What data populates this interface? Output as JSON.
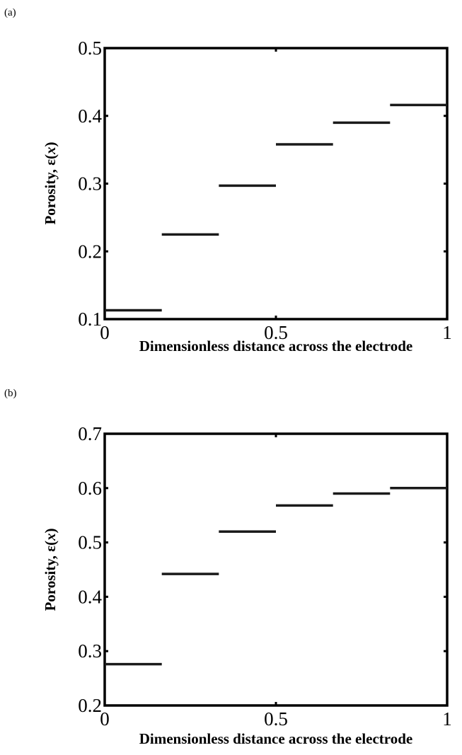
{
  "chart_data": [
    {
      "panel_label": "(a)",
      "type": "line",
      "style": "piecewise-constant steps",
      "xlabel": "Dimensionless distance across the electrode",
      "ylabel_text": "Porosity, ",
      "ylabel_symbol": "ε(",
      "ylabel_var": "x",
      "ylabel_close": ")",
      "xlim": [
        0,
        1
      ],
      "ylim": [
        0.1,
        0.5
      ],
      "xticks": [
        "0",
        "0.5",
        "1"
      ],
      "yticks": [
        "0.1",
        "0.2",
        "0.3",
        "0.4",
        "0.5"
      ],
      "grid": false,
      "series": [
        {
          "segments": [
            {
              "x": [
                0.0,
                0.1667
              ],
              "y": 0.113
            },
            {
              "x": [
                0.1667,
                0.3333
              ],
              "y": 0.225
            },
            {
              "x": [
                0.3333,
                0.5
              ],
              "y": 0.297
            },
            {
              "x": [
                0.5,
                0.6667
              ],
              "y": 0.358
            },
            {
              "x": [
                0.6667,
                0.8333
              ],
              "y": 0.39
            },
            {
              "x": [
                0.8333,
                1.0
              ],
              "y": 0.416
            }
          ]
        }
      ]
    },
    {
      "panel_label": "(b)",
      "type": "line",
      "style": "piecewise-constant steps",
      "xlabel": "Dimensionless distance across the electrode",
      "ylabel_text": "Porosity, ",
      "ylabel_symbol": "ε(",
      "ylabel_var": "x",
      "ylabel_close": ")",
      "xlim": [
        0,
        1
      ],
      "ylim": [
        0.2,
        0.7
      ],
      "xticks": [
        "0",
        "0.5",
        "1"
      ],
      "yticks": [
        "0.2",
        "0.3",
        "0.4",
        "0.5",
        "0.6",
        "0.7"
      ],
      "grid": false,
      "series": [
        {
          "segments": [
            {
              "x": [
                0.0,
                0.1667
              ],
              "y": 0.276
            },
            {
              "x": [
                0.1667,
                0.3333
              ],
              "y": 0.442
            },
            {
              "x": [
                0.3333,
                0.5
              ],
              "y": 0.52
            },
            {
              "x": [
                0.5,
                0.6667
              ],
              "y": 0.568
            },
            {
              "x": [
                0.6667,
                0.8333
              ],
              "y": 0.59
            },
            {
              "x": [
                0.8333,
                1.0
              ],
              "y": 0.6
            }
          ]
        }
      ]
    }
  ]
}
